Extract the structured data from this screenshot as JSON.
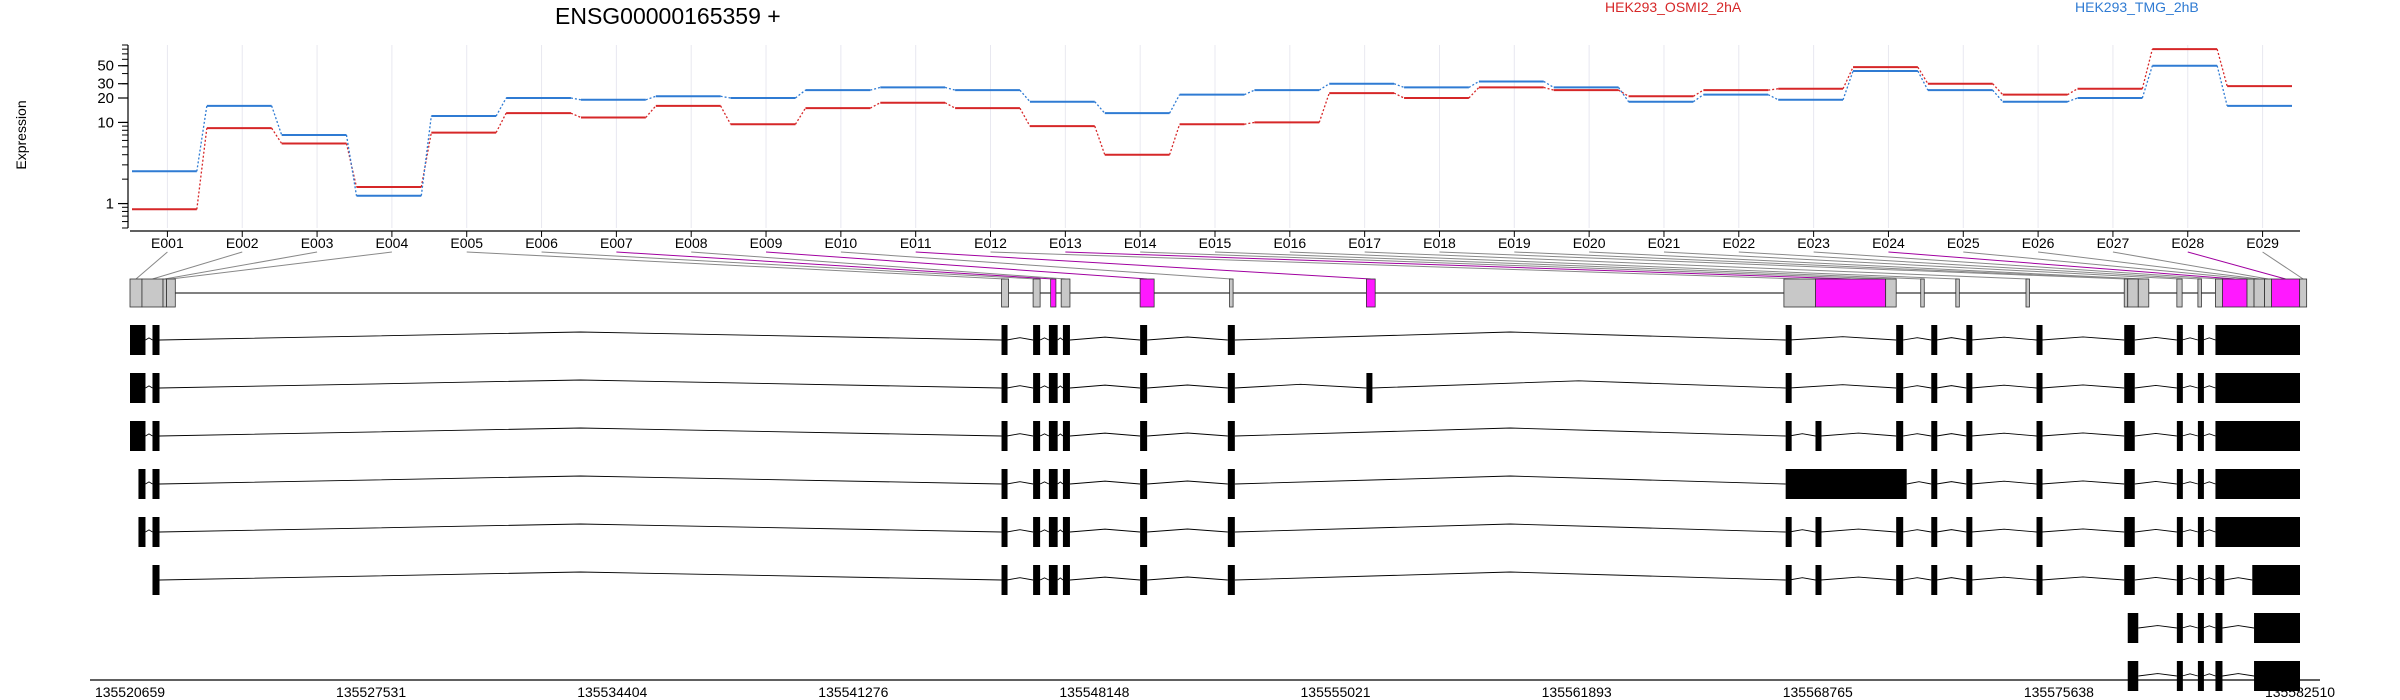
{
  "chart_data": {
    "type": "line",
    "title": "ENSG00000165359 +",
    "ylabel": "Expression",
    "y_scale": "log",
    "y_ticks": [
      1,
      10,
      20,
      30,
      50
    ],
    "ylim": [
      0.5,
      90
    ],
    "grid": "vertical",
    "legend_placement": "top",
    "categories": [
      "E001",
      "E002",
      "E003",
      "E004",
      "E005",
      "E006",
      "E007",
      "E008",
      "E009",
      "E010",
      "E011",
      "E012",
      "E013",
      "E014",
      "E015",
      "E016",
      "E017",
      "E018",
      "E019",
      "E020",
      "E021",
      "E022",
      "E023",
      "E024",
      "E025",
      "E026",
      "E027",
      "E028",
      "E029"
    ],
    "series": [
      {
        "name": "HEK293_OSMI2_2hA",
        "color": "#d62728",
        "values": [
          0.85,
          8.5,
          5.5,
          1.6,
          7.5,
          13,
          11.5,
          16,
          9.5,
          15,
          17.5,
          15,
          9,
          4,
          9.5,
          10,
          23,
          20,
          27,
          25,
          21,
          25,
          26,
          48,
          30,
          22,
          26,
          80,
          28
        ]
      },
      {
        "name": "HEK293_TMG_2hB",
        "color": "#2f7bd3",
        "values": [
          2.5,
          16,
          7,
          1.25,
          12,
          20,
          19,
          21,
          20,
          25,
          27,
          25,
          18,
          13,
          22,
          25,
          30,
          27,
          32,
          27,
          18,
          22,
          19,
          43,
          25,
          18,
          20,
          50,
          16
        ]
      }
    ],
    "exon_bounds": [
      [
        135520659,
        135521000
      ],
      [
        135521000,
        135521600
      ],
      [
        135521600,
        135521700
      ],
      [
        135521700,
        135521950
      ],
      [
        135545500,
        135545700
      ],
      [
        135546400,
        135546600
      ],
      [
        135546900,
        135547050
      ],
      [
        135547200,
        135547450
      ],
      [
        135549450,
        135549850
      ],
      [
        135552000,
        135552100
      ],
      [
        135555900,
        135556150
      ],
      [
        135567800,
        135568700
      ],
      [
        135568700,
        135570700
      ],
      [
        135570700,
        135571000
      ],
      [
        135571700,
        135571800
      ],
      [
        135572700,
        135572800
      ],
      [
        135574700,
        135574800
      ],
      [
        135577500,
        135577600
      ],
      [
        135577600,
        135577900
      ],
      [
        135577900,
        135578200
      ],
      [
        135579000,
        135579150
      ],
      [
        135579600,
        135579700
      ],
      [
        135580100,
        135580300
      ],
      [
        135580300,
        135581000
      ],
      [
        135581000,
        135581200
      ],
      [
        135581200,
        135581500
      ],
      [
        135581500,
        135581700
      ],
      [
        135581700,
        135582500
      ],
      [
        135582500,
        135582700
      ]
    ],
    "highlighted_exons": [
      "E007",
      "E009",
      "E011",
      "E013",
      "E024",
      "E028"
    ],
    "transcripts": [
      [
        [
          135520659,
          135521100
        ],
        [
          135521300,
          135521500
        ],
        [
          135545500,
          135545650
        ],
        [
          135546400,
          135546600
        ],
        [
          135546850,
          135547100
        ],
        [
          135547250,
          135547450
        ],
        [
          135549450,
          135549650
        ],
        [
          135551950,
          135552150
        ],
        [
          135567850,
          135567950
        ],
        [
          135571000,
          135571200
        ],
        [
          135572000,
          135572150
        ],
        [
          135573000,
          135573150
        ],
        [
          135575000,
          135575150
        ],
        [
          135577500,
          135577800
        ],
        [
          135579000,
          135579150
        ],
        [
          135579600,
          135579750
        ],
        [
          135580100,
          135582510
        ]
      ],
      [
        [
          135520659,
          135521100
        ],
        [
          135521300,
          135521500
        ],
        [
          135545500,
          135545650
        ],
        [
          135546400,
          135546600
        ],
        [
          135546850,
          135547100
        ],
        [
          135547250,
          135547450
        ],
        [
          135549450,
          135549650
        ],
        [
          135551950,
          135552150
        ],
        [
          135555900,
          135556050
        ],
        [
          135567850,
          135567950
        ],
        [
          135571000,
          135571200
        ],
        [
          135572000,
          135572150
        ],
        [
          135573000,
          135573150
        ],
        [
          135575000,
          135575150
        ],
        [
          135577500,
          135577800
        ],
        [
          135579000,
          135579150
        ],
        [
          135579600,
          135579750
        ],
        [
          135580100,
          135582510
        ]
      ],
      [
        [
          135520659,
          135521100
        ],
        [
          135521300,
          135521500
        ],
        [
          135545500,
          135545650
        ],
        [
          135546400,
          135546600
        ],
        [
          135546850,
          135547100
        ],
        [
          135547250,
          135547450
        ],
        [
          135549450,
          135549650
        ],
        [
          135551950,
          135552150
        ],
        [
          135567850,
          135567950
        ],
        [
          135568700,
          135568850
        ],
        [
          135571000,
          135571200
        ],
        [
          135572000,
          135572150
        ],
        [
          135573000,
          135573150
        ],
        [
          135575000,
          135575150
        ],
        [
          135577500,
          135577800
        ],
        [
          135579000,
          135579150
        ],
        [
          135579600,
          135579750
        ],
        [
          135580100,
          135582510
        ]
      ],
      [
        [
          135520900,
          135521100
        ],
        [
          135521300,
          135521500
        ],
        [
          135545500,
          135545650
        ],
        [
          135546400,
          135546600
        ],
        [
          135546850,
          135547100
        ],
        [
          135547250,
          135547450
        ],
        [
          135549450,
          135549650
        ],
        [
          135551950,
          135552150
        ],
        [
          135567850,
          135571300
        ],
        [
          135572000,
          135572150
        ],
        [
          135573000,
          135573150
        ],
        [
          135575000,
          135575150
        ],
        [
          135577500,
          135577800
        ],
        [
          135579000,
          135579150
        ],
        [
          135579600,
          135579750
        ],
        [
          135580100,
          135582510
        ]
      ],
      [
        [
          135520900,
          135521100
        ],
        [
          135521300,
          135521500
        ],
        [
          135545500,
          135545650
        ],
        [
          135546400,
          135546600
        ],
        [
          135546850,
          135547100
        ],
        [
          135547250,
          135547450
        ],
        [
          135549450,
          135549650
        ],
        [
          135551950,
          135552150
        ],
        [
          135567850,
          135567950
        ],
        [
          135568700,
          135568850
        ],
        [
          135571000,
          135571200
        ],
        [
          135572000,
          135572150
        ],
        [
          135573000,
          135573150
        ],
        [
          135575000,
          135575150
        ],
        [
          135577500,
          135577800
        ],
        [
          135579000,
          135579150
        ],
        [
          135579600,
          135579750
        ],
        [
          135580100,
          135582510
        ]
      ],
      [
        [
          135521300,
          135521500
        ],
        [
          135545500,
          135545650
        ],
        [
          135546400,
          135546600
        ],
        [
          135546850,
          135547100
        ],
        [
          135547250,
          135547450
        ],
        [
          135549450,
          135549650
        ],
        [
          135551950,
          135552150
        ],
        [
          135567850,
          135567950
        ],
        [
          135568700,
          135568850
        ],
        [
          135571000,
          135571200
        ],
        [
          135572000,
          135572150
        ],
        [
          135573000,
          135573150
        ],
        [
          135575000,
          135575150
        ],
        [
          135577500,
          135577800
        ],
        [
          135579000,
          135579150
        ],
        [
          135579600,
          135579750
        ],
        [
          135580100,
          135580350
        ],
        [
          135581150,
          135582510
        ]
      ],
      [
        [
          135577600,
          135577900
        ],
        [
          135579000,
          135579150
        ],
        [
          135579600,
          135579750
        ],
        [
          135580100,
          135580300
        ],
        [
          135581200,
          135582510
        ]
      ],
      [
        [
          135577600,
          135577900
        ],
        [
          135579000,
          135579150
        ],
        [
          135579600,
          135579750
        ],
        [
          135580100,
          135580300
        ],
        [
          135581200,
          135582510
        ]
      ]
    ],
    "x_ticks": [
      135520659,
      135527531,
      135534404,
      135541276,
      135548148,
      135555021,
      135561893,
      135568765,
      135575638,
      135582510
    ],
    "x_range": [
      135520659,
      135582510
    ]
  }
}
